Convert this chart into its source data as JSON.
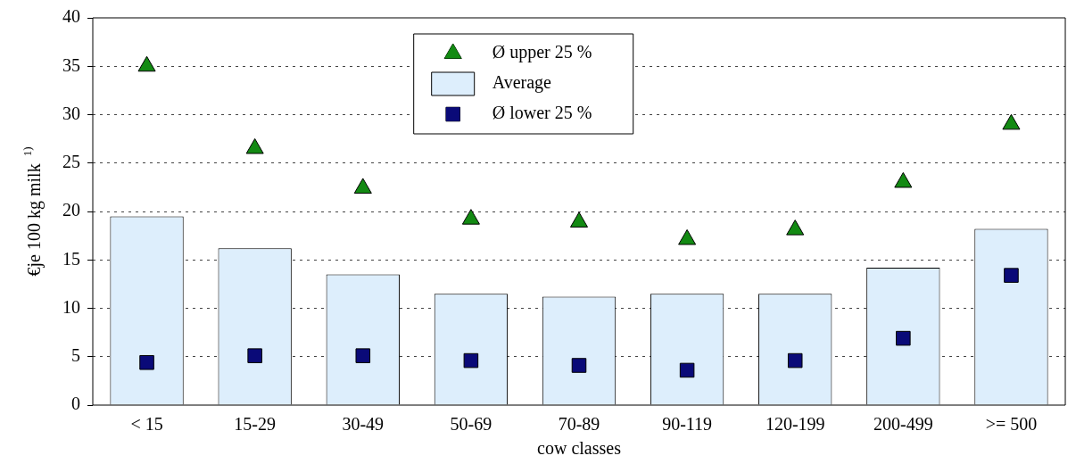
{
  "chart_data": {
    "type": "bar",
    "xlabel": "cow classes",
    "ylabel": "€je 100 kg milk $^{1)}$",
    "categories": [
      "< 15",
      "15-29",
      "30-49",
      "50-69",
      "70-89",
      "90-119",
      "120-199",
      "200-499",
      ">= 500"
    ],
    "series": [
      {
        "name": "Ø upper 25 %",
        "type": "scatter",
        "marker": "triangle",
        "color": "#138a13",
        "values": [
          35.0,
          26.5,
          22.4,
          19.2,
          18.9,
          17.1,
          18.1,
          23.0,
          29.0
        ]
      },
      {
        "name": "Average",
        "color": "#ddeefc",
        "values": [
          19.5,
          16.2,
          13.5,
          11.5,
          11.2,
          11.5,
          11.5,
          14.2,
          18.2
        ]
      },
      {
        "name": "Ø lower 25 %",
        "type": "scatter",
        "marker": "square",
        "color": "#0a0a78",
        "values": [
          4.4,
          5.1,
          5.1,
          4.6,
          4.1,
          3.6,
          4.6,
          6.9,
          13.4
        ]
      }
    ],
    "ylim": [
      0,
      40
    ],
    "yticks": [
      0,
      5,
      10,
      15,
      20,
      25,
      30,
      35,
      40
    ],
    "grid": "y",
    "legend": "top"
  }
}
